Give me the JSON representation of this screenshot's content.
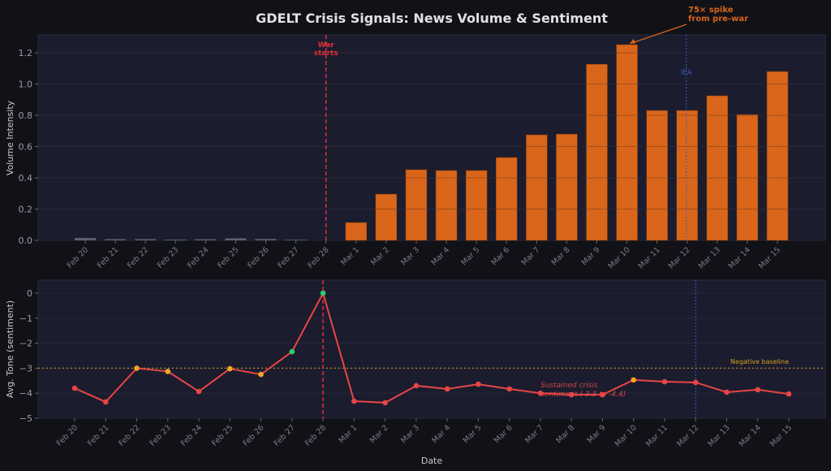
{
  "title": "GDELT Crisis Signals: News Volume & Sentiment",
  "colors": {
    "background": "#111217",
    "panel": "#1b1c2e",
    "bar_post": "#d9661a",
    "bar_pre": "#5e6172",
    "line": "#e84545",
    "war": "#e0303a",
    "iea": "#3b5db5",
    "baseline": "#d9a020",
    "green": "#2ecc71",
    "orange_point": "#f5a623"
  },
  "chart_data": [
    {
      "type": "bar",
      "ylabel": "Volume Intensity",
      "xlabel": "",
      "ylim": [
        0,
        1.32
      ],
      "yticks": [
        "0.0",
        "0.2",
        "0.4",
        "0.6",
        "0.8",
        "1.0",
        "1.2"
      ],
      "grid": true,
      "categories": [
        "Feb 20",
        "Feb 21",
        "Feb 22",
        "Feb 23",
        "Feb 24",
        "Feb 25",
        "Feb 26",
        "Feb 27",
        "Feb 28",
        "Mar 1",
        "Mar 2",
        "Mar 3",
        "Mar 4",
        "Mar 5",
        "Mar 6",
        "Mar 7",
        "Mar 8",
        "Mar 9",
        "Mar 10",
        "Mar 11",
        "Mar 12",
        "Mar 13",
        "Mar 14",
        "Mar 15"
      ],
      "values": [
        0.015,
        0.008,
        0.008,
        0.005,
        0.007,
        0.013,
        0.009,
        0.004,
        0,
        0.114,
        0.296,
        0.452,
        0.447,
        0.447,
        0.53,
        0.675,
        0.68,
        1.127,
        1.252,
        0.831,
        0.831,
        0.925,
        0.805,
        1.08
      ],
      "annotations": [
        {
          "text_lines": [
            "War",
            "starts"
          ],
          "at": "Feb 28",
          "kind": "war-line"
        },
        {
          "text": "IEA",
          "at": "Mar 12",
          "kind": "iea-line"
        },
        {
          "text_lines": [
            "75× spike",
            "from pre-war"
          ],
          "at": "Mar 10",
          "kind": "arrow"
        }
      ]
    },
    {
      "type": "line",
      "ylabel": "Avg. Tone (sentiment)",
      "xlabel": "Date",
      "ylim": [
        -5,
        0.5
      ],
      "yticks": [
        "−5",
        "−4",
        "−3",
        "−2",
        "−1",
        "0"
      ],
      "categories": [
        "Feb 20",
        "Feb 21",
        "Feb 22",
        "Feb 23",
        "Feb 24",
        "Feb 25",
        "Feb 26",
        "Feb 27",
        "Feb 28",
        "Mar 1",
        "Mar 2",
        "Mar 3",
        "Mar 4",
        "Mar 5",
        "Mar 6",
        "Mar 7",
        "Mar 8",
        "Mar 9",
        "Mar 10",
        "Mar 11",
        "Mar 12",
        "Mar 13",
        "Mar 14",
        "Mar 15"
      ],
      "values": [
        -3.8,
        -4.35,
        -3.0,
        -3.13,
        -3.93,
        -3.02,
        -3.25,
        -2.34,
        0,
        -4.32,
        -4.38,
        -3.7,
        -3.83,
        -3.64,
        -3.83,
        -4.0,
        -4.06,
        -4.06,
        -3.47,
        -3.54,
        -3.57,
        -3.96,
        -3.86,
        -4.03
      ],
      "baseline": {
        "value": -3.0,
        "label": "Negative baseline"
      },
      "annotations": [
        {
          "text_lines": [
            "Sustained crisis",
            "sentiment (-3.5 to -4.4)"
          ],
          "at": "Mar 7"
        }
      ]
    }
  ]
}
